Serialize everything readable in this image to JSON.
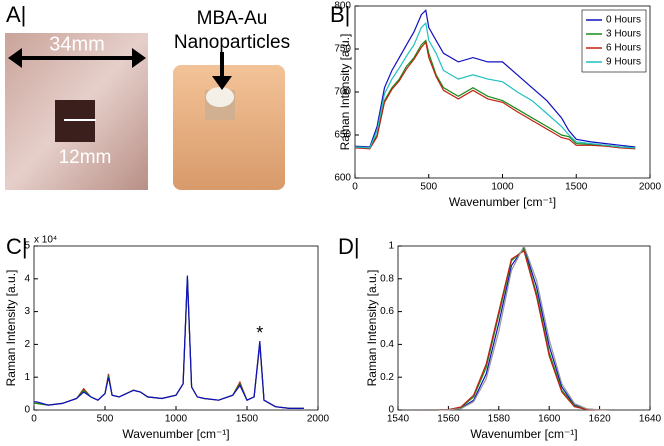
{
  "photos": {
    "panel_label": "A|",
    "width_label": "34mm",
    "hole_label": "12mm",
    "particle_label_1": "MBA-Au",
    "particle_label_2": "Nanoparticles"
  },
  "chart_data": [
    {
      "type": "line",
      "panel_label": "B|",
      "x_label": "Wavenumber [cm⁻¹]",
      "y_label": "Raman Intensity [a.u.]",
      "xlim": [
        0,
        2000
      ],
      "ylim": [
        600,
        800
      ],
      "xticks": [
        0,
        500,
        1000,
        1500,
        2000
      ],
      "yticks": [
        600,
        650,
        700,
        750,
        800
      ],
      "legend": "upper right",
      "x": [
        0,
        100,
        150,
        200,
        250,
        300,
        350,
        400,
        450,
        480,
        500,
        550,
        600,
        700,
        800,
        900,
        1000,
        1100,
        1200,
        1300,
        1400,
        1450,
        1500,
        1600,
        1700,
        1800,
        1900
      ],
      "series": [
        {
          "name": "0 Hours",
          "color": "#1010c0",
          "values": [
            637,
            636,
            660,
            705,
            725,
            740,
            755,
            770,
            790,
            795,
            775,
            760,
            745,
            735,
            740,
            735,
            735,
            720,
            705,
            690,
            670,
            655,
            645,
            642,
            640,
            638,
            636
          ]
        },
        {
          "name": "3 Hours",
          "color": "#1a8a1a",
          "values": [
            636,
            635,
            650,
            690,
            705,
            715,
            730,
            740,
            755,
            760,
            745,
            720,
            705,
            695,
            705,
            695,
            690,
            680,
            670,
            660,
            650,
            648,
            640,
            639,
            638,
            636,
            635
          ]
        },
        {
          "name": "6 Hours",
          "color": "#c02010",
          "values": [
            635,
            634,
            648,
            688,
            703,
            713,
            727,
            738,
            752,
            758,
            740,
            718,
            702,
            692,
            702,
            692,
            688,
            677,
            667,
            657,
            647,
            645,
            638,
            638,
            637,
            635,
            634
          ]
        },
        {
          "name": "9 Hours",
          "color": "#20c0c0",
          "values": [
            636,
            635,
            655,
            698,
            715,
            728,
            742,
            755,
            775,
            780,
            760,
            745,
            725,
            715,
            720,
            715,
            712,
            700,
            690,
            675,
            660,
            650,
            642,
            640,
            638,
            636,
            635
          ]
        }
      ]
    },
    {
      "type": "line",
      "panel_label": "C|",
      "x_label": "Wavenumber [cm⁻¹]",
      "y_label": "Raman Intensity [a.u.]",
      "y_multiplier": "x 10⁴",
      "annotation": "*",
      "xlim": [
        0,
        2000
      ],
      "ylim": [
        0,
        5
      ],
      "xticks": [
        0,
        500,
        1000,
        1500,
        2000
      ],
      "yticks": [
        0,
        1,
        2,
        3,
        4,
        5
      ],
      "x": [
        0,
        20,
        100,
        200,
        300,
        350,
        400,
        450,
        500,
        525,
        550,
        600,
        700,
        750,
        800,
        900,
        1000,
        1050,
        1080,
        1110,
        1150,
        1200,
        1300,
        1400,
        1450,
        1500,
        1550,
        1590,
        1620,
        1700,
        1800,
        1900
      ],
      "series": [
        {
          "color": "#c02010",
          "values": [
            0.2,
            0.2,
            0.15,
            0.2,
            0.35,
            0.65,
            0.4,
            0.3,
            0.5,
            1.1,
            0.45,
            0.4,
            0.6,
            0.55,
            0.4,
            0.35,
            0.45,
            0.8,
            4.0,
            0.7,
            0.4,
            0.35,
            0.3,
            0.45,
            0.85,
            0.3,
            0.4,
            2.0,
            0.3,
            0.1,
            0.05,
            0.05
          ]
        },
        {
          "color": "#1a8a1a",
          "values": [
            0.2,
            0.2,
            0.15,
            0.2,
            0.35,
            0.6,
            0.4,
            0.3,
            0.5,
            1.05,
            0.45,
            0.4,
            0.6,
            0.55,
            0.4,
            0.35,
            0.45,
            0.8,
            4.05,
            0.7,
            0.4,
            0.35,
            0.3,
            0.45,
            0.8,
            0.3,
            0.4,
            2.05,
            0.3,
            0.1,
            0.05,
            0.05
          ]
        },
        {
          "color": "#1010c0",
          "values": [
            0.25,
            0.25,
            0.15,
            0.2,
            0.35,
            0.55,
            0.4,
            0.3,
            0.5,
            1.0,
            0.45,
            0.4,
            0.6,
            0.55,
            0.4,
            0.35,
            0.45,
            0.8,
            4.1,
            0.7,
            0.4,
            0.35,
            0.3,
            0.45,
            0.75,
            0.3,
            0.4,
            2.1,
            0.3,
            0.1,
            0.05,
            0.05
          ]
        }
      ]
    },
    {
      "type": "line",
      "panel_label": "D|",
      "x_label": "Wavenumber [cm⁻¹]",
      "y_label": "Raman Intensity [a.u.]",
      "xlim": [
        1540,
        1640
      ],
      "ylim": [
        0,
        1
      ],
      "xticks": [
        1540,
        1560,
        1580,
        1600,
        1620,
        1640
      ],
      "yticks": [
        0,
        0.2,
        0.4,
        0.6,
        0.8,
        1
      ],
      "x": [
        1550,
        1555,
        1560,
        1565,
        1570,
        1575,
        1580,
        1585,
        1590,
        1595,
        1600,
        1605,
        1610,
        1615,
        1620,
        1625
      ],
      "series": [
        {
          "color": "#1010c0",
          "values": [
            0,
            0.0001,
            0.0014,
            0.011,
            0.06,
            0.22,
            0.53,
            0.88,
            0.99,
            0.75,
            0.39,
            0.14,
            0.03,
            0.005,
            0.001,
            0
          ]
        },
        {
          "color": "#1a8a1a",
          "values": [
            0,
            0.0002,
            0.002,
            0.015,
            0.08,
            0.26,
            0.58,
            0.91,
            0.98,
            0.71,
            0.35,
            0.12,
            0.025,
            0.004,
            0.001,
            0
          ]
        },
        {
          "color": "#c02010",
          "values": [
            0,
            0.0002,
            0.0025,
            0.018,
            0.09,
            0.28,
            0.6,
            0.92,
            0.97,
            0.69,
            0.33,
            0.11,
            0.02,
            0.003,
            0.0005,
            0
          ]
        },
        {
          "color": "#999999",
          "values": [
            0,
            0.0001,
            0.001,
            0.008,
            0.05,
            0.19,
            0.48,
            0.85,
            1,
            0.79,
            0.43,
            0.16,
            0.04,
            0.007,
            0.001,
            0
          ]
        }
      ]
    }
  ]
}
